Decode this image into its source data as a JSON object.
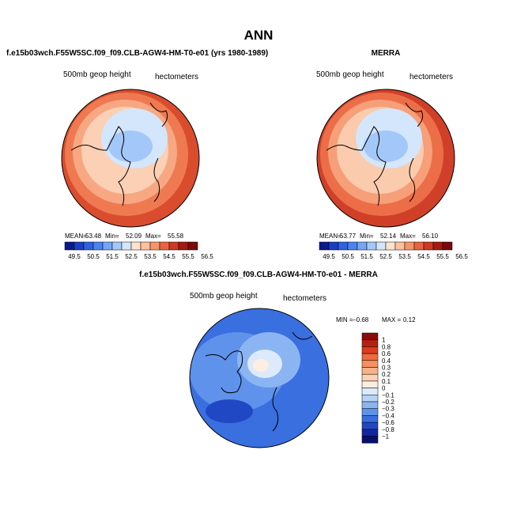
{
  "title": "ANN",
  "panels": [
    {
      "title": "f.e15b03wch.F55W5SC.f09_f09.CLB-AGW4-HM-T0-e01 (yrs 1980-1989)",
      "left_label": "500mb geop height",
      "right_label": "hectometers",
      "stats": [
        "MEAN=",
        "53.48",
        "Min=",
        "52.09",
        "Max=",
        "55.58"
      ],
      "colorbar": [
        "49.5",
        "50.5",
        "51.5",
        "52.5",
        "53.5",
        "54.5",
        "55.5",
        "56.5"
      ]
    },
    {
      "title": "MERRA",
      "left_label": "500mb geop height",
      "right_label": "hectometers",
      "stats": [
        "MEAN=",
        "53.77",
        "Min=",
        "52.14",
        "Max=",
        "56.10"
      ],
      "colorbar": [
        "49.5",
        "50.5",
        "51.5",
        "52.5",
        "53.5",
        "54.5",
        "55.5",
        "56.5"
      ]
    },
    {
      "title": "f.e15b03wch.F55W5SC.f09_f09.CLB-AGW4-HM-T0-e01 - MERRA",
      "left_label": "500mb geop height",
      "right_label": "hectometers",
      "stats": [
        "MIN =",
        "−0.68",
        "MAX =",
        "0.12"
      ],
      "colorbar": [
        "1",
        "0.8",
        "0.6",
        "0.4",
        "0.3",
        "0.2",
        "0.1",
        "0",
        "−0.1",
        "−0.2",
        "−0.3",
        "−0.4",
        "−0.6",
        "−0.8",
        "−1"
      ]
    }
  ],
  "colors_abs": [
    "#0a1a8c",
    "#1c3fc2",
    "#2f62e0",
    "#4a83ee",
    "#74a6f4",
    "#a3c7f8",
    "#d4e6fb",
    "#fde2cf",
    "#fbc1a0",
    "#f5956a",
    "#e8643f",
    "#cc3a22",
    "#a31a12",
    "#7a0a0a"
  ],
  "colors_diff": [
    "#8c0a0a",
    "#b8200f",
    "#dc3a1e",
    "#ef6a3e",
    "#f6905f",
    "#f9b188",
    "#fcd2b4",
    "#fdeee2",
    "#dceafb",
    "#b7d3f7",
    "#8bb5f2",
    "#5f92ea",
    "#3a6fdf",
    "#2148c4",
    "#12269c",
    "#070f6e"
  ]
}
